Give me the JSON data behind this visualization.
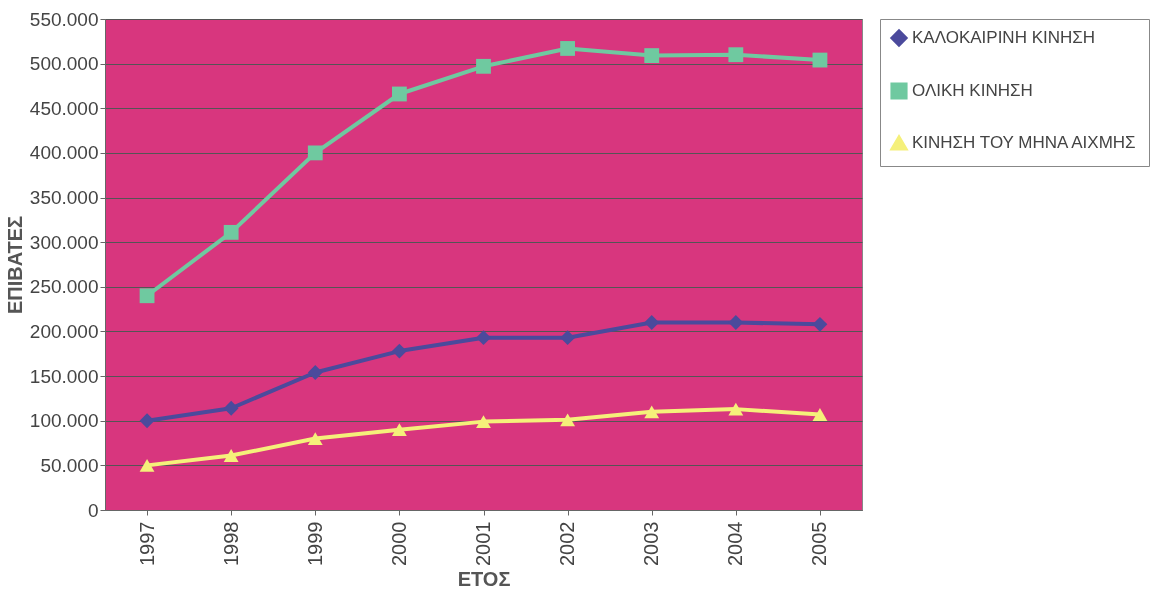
{
  "chart_data": {
    "type": "line",
    "xlabel": "ΕΤΟΣ",
    "ylabel": "ΕΠΙΒΑΤΕΣ",
    "categories": [
      "1997",
      "1998",
      "1999",
      "2000",
      "2001",
      "2002",
      "2003",
      "2004",
      "2005"
    ],
    "series": [
      {
        "name": "ΚΑΛΟΚΑΙΡΙΝΗ ΚΙΝΗΣΗ",
        "color": "#4b4a9c",
        "marker": "diamond",
        "values": [
          100000,
          114000,
          154000,
          178000,
          193000,
          193000,
          210000,
          210000,
          208000
        ]
      },
      {
        "name": "ΟΛΙΚΗ ΚΙΝΗΣΗ",
        "color": "#6fc9a0",
        "marker": "square",
        "values": [
          240000,
          311000,
          400000,
          466000,
          497000,
          517000,
          509000,
          510000,
          504000
        ]
      },
      {
        "name": "ΚΙΝΗΣΗ ΤΟΥ ΜΗΝΑ ΑΙΧΜΗΣ",
        "color": "#f5f07a",
        "marker": "triangle",
        "values": [
          50000,
          61000,
          80000,
          90000,
          99000,
          101000,
          110000,
          113000,
          107000
        ]
      }
    ],
    "ylim": [
      0,
      550000
    ],
    "yticks": [
      {
        "value": 0,
        "label": "0"
      },
      {
        "value": 50000,
        "label": "50.000"
      },
      {
        "value": 100000,
        "label": "100.000"
      },
      {
        "value": 150000,
        "label": "150.000"
      },
      {
        "value": 200000,
        "label": "200.000"
      },
      {
        "value": 250000,
        "label": "250.000"
      },
      {
        "value": 300000,
        "label": "300.000"
      },
      {
        "value": 350000,
        "label": "350.000"
      },
      {
        "value": 400000,
        "label": "400.000"
      },
      {
        "value": 450000,
        "label": "450.000"
      },
      {
        "value": 500000,
        "label": "500.000"
      },
      {
        "value": 550000,
        "label": "550.000"
      }
    ],
    "grid": "y",
    "legend": "right",
    "line_style": "solid"
  }
}
